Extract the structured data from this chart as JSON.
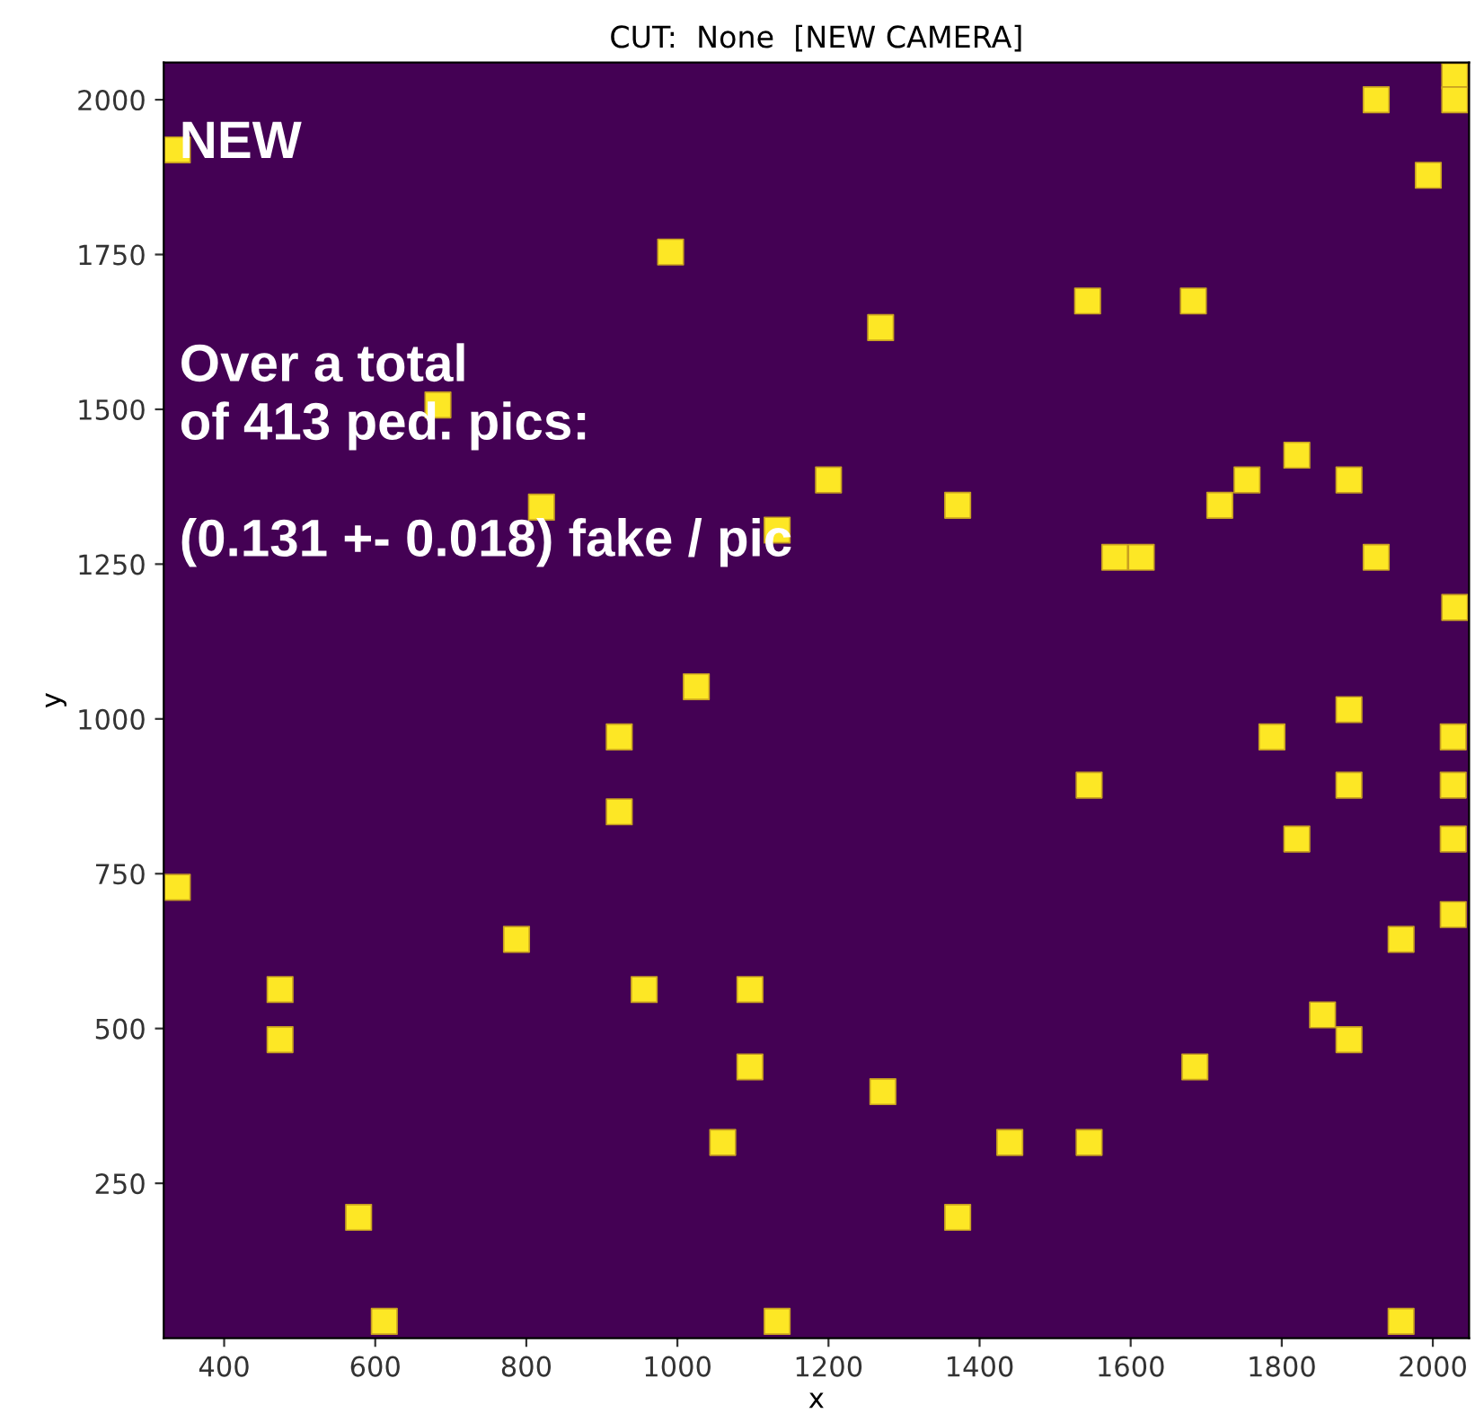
{
  "chart_data": {
    "type": "scatter",
    "title": "CUT:  None  [NEW CAMERA]",
    "xlabel": "x",
    "ylabel": "y",
    "xlim": [
      320,
      2048
    ],
    "ylim": [
      0,
      2060
    ],
    "xticks": [
      400,
      600,
      800,
      1000,
      1200,
      1400,
      1600,
      1800,
      2000
    ],
    "yticks": [
      250,
      500,
      750,
      1000,
      1250,
      1500,
      1750,
      2000
    ],
    "grid": false,
    "legend": false,
    "marker": "square",
    "annotations": [
      "NEW",
      "Over a total\nof 413 ped. pics:\n\n(0.131 +- 0.018) fake / pic"
    ],
    "series": [
      {
        "color": "#fde725",
        "x": [
          338,
          683,
          820,
          991,
          1132,
          1200,
          1269,
          1371,
          1543,
          1683,
          1718,
          1754,
          1820,
          1889,
          1925,
          1579,
          1614,
          1925,
          2029,
          2029,
          1994,
          2029,
          1889,
          1787,
          2027,
          1545,
          1889,
          2027,
          1820,
          2027,
          2027,
          1958,
          1854,
          1889,
          1685,
          1272,
          1440,
          1545,
          1371,
          1958,
          1025,
          923,
          923,
          338,
          787,
          474,
          956,
          1096,
          474,
          1096,
          1060,
          578,
          612,
          1132
        ],
        "values": [
          1919,
          1507,
          1342,
          1754,
          1305,
          1386,
          1632,
          1345,
          1675,
          1675,
          1345,
          1386,
          1426,
          1386,
          1261,
          1261,
          1261,
          2000,
          2038,
          2000,
          1878,
          1180,
          1015,
          971,
          971,
          893,
          893,
          893,
          806,
          806,
          684,
          644,
          522,
          482,
          438,
          398,
          316,
          316,
          195,
          27,
          1052,
          971,
          850,
          728,
          644,
          563,
          563,
          563,
          482,
          438,
          316,
          195,
          27,
          27
        ]
      }
    ]
  }
}
